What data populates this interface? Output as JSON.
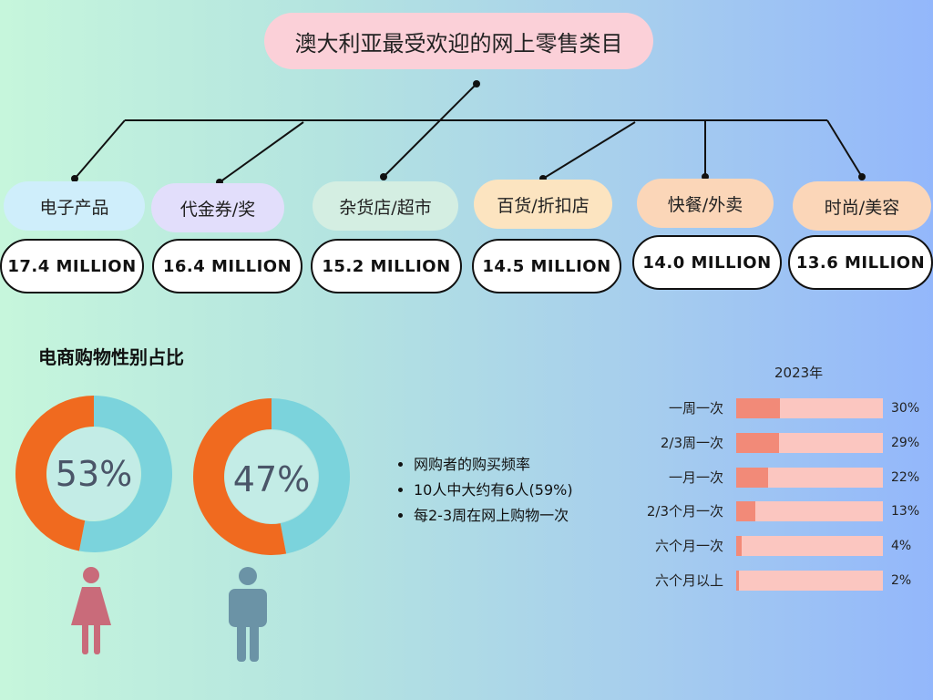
{
  "title": "澳大利亚最受欢迎的网上零售类目",
  "categories": [
    {
      "label": "电子产品",
      "value": "17.4 MILLION",
      "color": "#cfeefb"
    },
    {
      "label": "代金券/奖",
      "value": "16.4 MILLION",
      "color": "#e2defb"
    },
    {
      "label": "杂货店/超市",
      "value": "15.2 MILLION",
      "color": "#d4eee2"
    },
    {
      "label": "百货/折扣店",
      "value": "14.5 MILLION",
      "color": "#fce4c0"
    },
    {
      "label": "快餐/外卖",
      "value": "14.0 MILLION",
      "color": "#fbd6b8"
    },
    {
      "label": "时尚/美容",
      "value": "13.6 MILLION",
      "color": "#fbd6b8"
    }
  ],
  "gender": {
    "title": "电商购物性别占比",
    "female": {
      "label": "53%",
      "percent": 53,
      "icon": "female-icon",
      "icon_color": "#c96b7a"
    },
    "male": {
      "label": "47%",
      "percent": 47,
      "icon": "male-icon",
      "icon_color": "#6b93a6"
    },
    "ring_color_a": "#7bd3dc",
    "ring_color_b": "#f06a1f",
    "hole_color": "#c3ece6"
  },
  "notes": [
    "网购者的购买频率",
    "10人中大约有6人(59%)",
    "每2-3周在网上购物一次"
  ],
  "chart_data": {
    "type": "bar",
    "title": "2023年",
    "categories": [
      "一周一次",
      "2/3周一次",
      "一月一次",
      "2/3个月一次",
      "六个月一次",
      "六个月以上"
    ],
    "values": [
      30,
      29,
      22,
      13,
      4,
      2
    ],
    "value_labels": [
      "30%",
      "29%",
      "22%",
      "13%",
      "4%",
      "2%"
    ],
    "ylim": [
      0,
      100
    ]
  }
}
